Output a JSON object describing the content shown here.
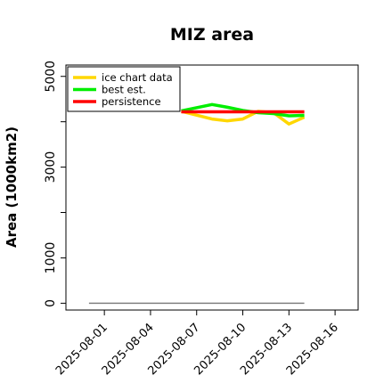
{
  "chart_data": {
    "type": "line",
    "title": "MIZ area",
    "xlabel": "",
    "ylabel": "Area (1000km2)",
    "x_ticks": [
      "2025-08-01",
      "2025-08-04",
      "2025-08-07",
      "2025-08-10",
      "2025-08-13",
      "2025-08-16"
    ],
    "y_ticks": [
      0,
      1000,
      3000,
      5000
    ],
    "xlim": [
      "2025-07-29T12:00",
      "2025-08-17T12:00"
    ],
    "ylim": [
      -150,
      5250
    ],
    "legend_position": "top-left",
    "grid": false,
    "series": [
      {
        "name": "ice chart data",
        "color": "#FFD700",
        "points": [
          [
            "2025-08-06",
            4230
          ],
          [
            "2025-08-08",
            4060
          ],
          [
            "2025-08-09",
            4020
          ],
          [
            "2025-08-10",
            4060
          ],
          [
            "2025-08-11",
            4230
          ],
          [
            "2025-08-12",
            4200
          ],
          [
            "2025-08-13",
            3950
          ],
          [
            "2025-08-14",
            4100
          ]
        ]
      },
      {
        "name": "best est.",
        "color": "#00EE00",
        "points": [
          [
            "2025-08-06",
            4240
          ],
          [
            "2025-08-08",
            4380
          ],
          [
            "2025-08-09",
            4320
          ],
          [
            "2025-08-10",
            4250
          ],
          [
            "2025-08-11",
            4200
          ],
          [
            "2025-08-12",
            4180
          ],
          [
            "2025-08-13",
            4130
          ],
          [
            "2025-08-14",
            4140
          ]
        ]
      },
      {
        "name": "persistence",
        "color": "#FF0000",
        "points": [
          [
            "2025-08-06",
            4220
          ],
          [
            "2025-08-14",
            4220
          ]
        ]
      }
    ],
    "baseline": {
      "color": "#808080",
      "points": [
        [
          "2025-07-31",
          0
        ],
        [
          "2025-08-14",
          0
        ]
      ]
    }
  }
}
